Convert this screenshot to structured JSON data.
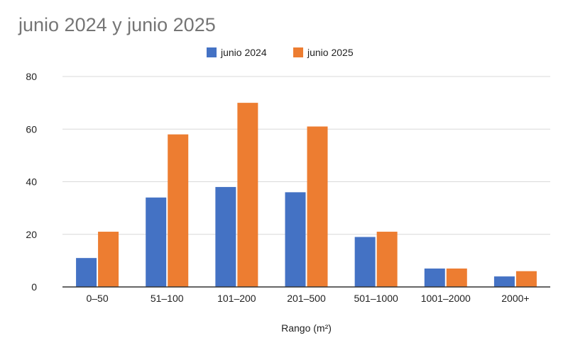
{
  "chart_data": {
    "type": "bar",
    "title": "junio 2024 y junio 2025",
    "xlabel": "Rango (m²)",
    "ylabel": "",
    "categories": [
      "0–50",
      "51–100",
      "101–200",
      "201–500",
      "501–1000",
      "1001–2000",
      "2000+"
    ],
    "series": [
      {
        "name": "junio 2024",
        "values": [
          11,
          34,
          38,
          36,
          19,
          7,
          4
        ],
        "color": "#4472c4"
      },
      {
        "name": "junio 2025",
        "values": [
          21,
          58,
          70,
          61,
          21,
          7,
          6
        ],
        "color": "#ed7d31"
      }
    ],
    "ylim": [
      0,
      80
    ],
    "yticks": [
      0,
      20,
      40,
      60,
      80
    ],
    "grid": true,
    "legend_position": "top-center"
  }
}
